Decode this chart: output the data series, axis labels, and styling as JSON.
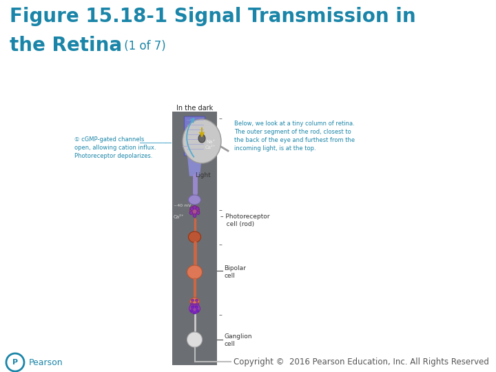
{
  "title_line1": "Figure 15.18-1 Signal Transmission in",
  "title_line2_bold": "the Retina",
  "title_line2_small": " (1 of 7)",
  "title_color": "#1a85a8",
  "title_fontsize": 20,
  "subtitle_fontsize": 12,
  "bg_color": "#ffffff",
  "panel_color": "#6b6e72",
  "copyright_text": "Copyright ©  2016 Pearson Education, Inc. All Rights Reserved",
  "copyright_color": "#555555",
  "copyright_fontsize": 8.5,
  "pearson_color": "#1a85a8",
  "pearson_fontsize": 9,
  "annotation_color": "#1a85a8",
  "label_color": "#333333",
  "label_fontsize": 6.5,
  "ann_fontsize": 6.0
}
